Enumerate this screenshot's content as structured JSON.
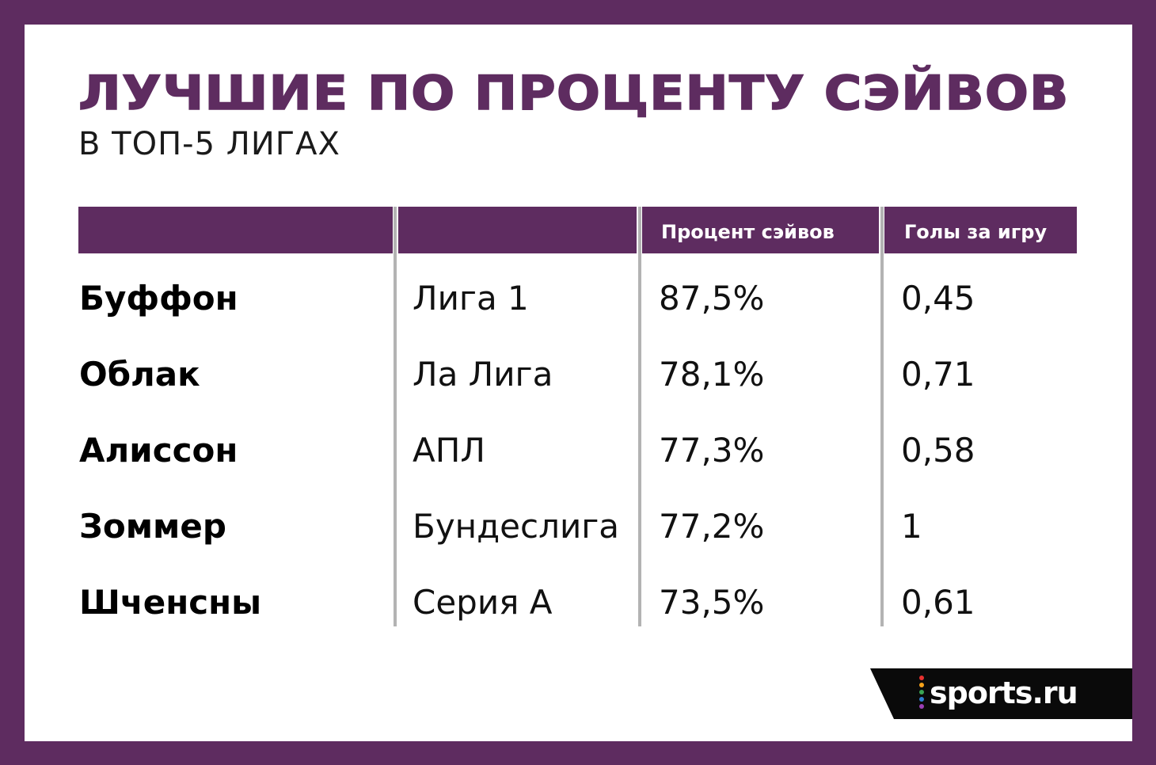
{
  "title": "ЛУЧШИЕ ПО ПРОЦЕНТУ СЭЙВОВ",
  "subtitle": "В ТОП-5 ЛИГАХ",
  "columns": [
    "",
    "",
    "Процент сэйвов",
    "Голы за игру"
  ],
  "rows": [
    {
      "name": "Буффон",
      "league": "Лига 1",
      "save_pct": "87,5%",
      "goals_per_game": "0,45"
    },
    {
      "name": "Облак",
      "league": "Ла Лига",
      "save_pct": "78,1%",
      "goals_per_game": "0,71"
    },
    {
      "name": "Алиссон",
      "league": "АПЛ",
      "save_pct": "77,3%",
      "goals_per_game": "0,58"
    },
    {
      "name": "Зоммер",
      "league": "Бундеслига",
      "save_pct": "77,2%",
      "goals_per_game": "1"
    },
    {
      "name": "Шченсны",
      "league": "Серия А",
      "save_pct": "73,5%",
      "goals_per_game": "0,61"
    }
  ],
  "logo": {
    "text": "sports.ru",
    "dot_colors": [
      "#e8312f",
      "#f6a21a",
      "#3aa655",
      "#2f7fd0",
      "#9b3fb5"
    ]
  },
  "colors": {
    "brand": "#5e2c60",
    "background": "#ffffff",
    "divider": "#b3b3b3"
  }
}
